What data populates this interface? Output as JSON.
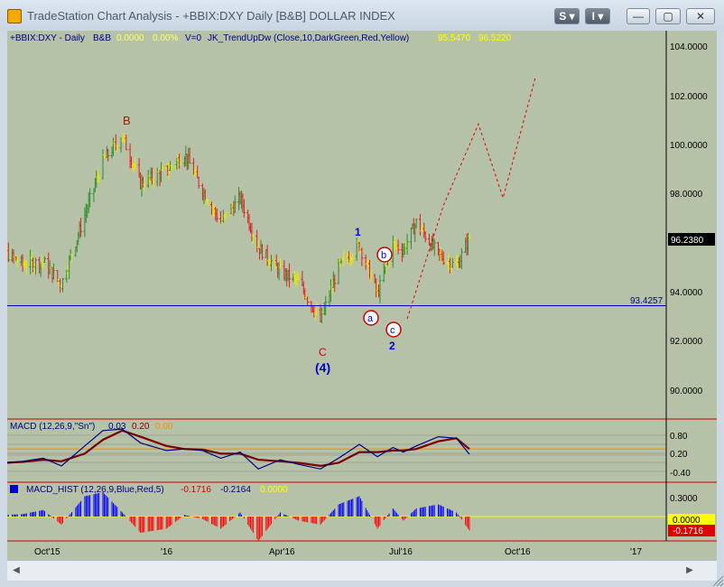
{
  "window": {
    "title": "TradeStation Chart Analysis - +BBIX:DXY Daily [B&B] DOLLAR INDEX",
    "menu_s": "S",
    "menu_i": "I",
    "minimize_glyph": "—",
    "maximize_glyph": "▢",
    "close_glyph": "✕"
  },
  "colors": {
    "plot_bg": "#b6c2a8",
    "frame": "#000000",
    "up_bar": "#2e8b2e",
    "down_bar": "#dd1f1f",
    "neutral_bar": "#e8e800",
    "wave_red": "#cc0000",
    "wave_blue": "#0000cc",
    "macd_line": "#000080",
    "macd_signal": "#7a0000",
    "macd_zero": "#ff8c00",
    "hist_blue": "#0000ff",
    "hist_red": "#ff0000",
    "support_line": "#0000cc",
    "projection": "#dd0000",
    "yellow_text": "#ffff00"
  },
  "header": {
    "symbol": "+BBIX:DXY - Daily",
    "tag": "B&B",
    "change": "0.0000",
    "change_pct": "0.00%",
    "volume": "V=0",
    "indicator": "JK_TrendUpDw (Close,10,DarkGreen,Red,Yellow)",
    "ind_val1": "95.5470",
    "ind_val2": "96.5220"
  },
  "wave_labels": {
    "B": "B",
    "C": "C",
    "four": "(4)",
    "one": "1",
    "two": "2",
    "a": "a",
    "b": "b",
    "c": "c"
  },
  "price_panel": {
    "y_ticks": [
      "104.0000",
      "102.0000",
      "100.0000",
      "98.0000",
      "94.0000",
      "92.0000",
      "90.0000"
    ],
    "last_price": "96.2380",
    "support_label": "93.4257"
  },
  "macd_panel": {
    "title": "MACD (12,26,9,\"Sn\")",
    "v1": "0.03",
    "v2": "0.20",
    "v3": "0.00",
    "ticks": [
      "0.80",
      "0.20",
      "-0.40"
    ]
  },
  "hist_panel": {
    "title": "MACD_HIST (12,26,9,Blue,Red,5)",
    "v1": "-0.1716",
    "v2": "-0.2164",
    "v3": "0.0000",
    "tick": "0.3000",
    "zero_badge": "0.0000",
    "hist_badge": "-0.1716"
  },
  "x_axis": [
    "Oct'15",
    "'16",
    "Apr'16",
    "Jul'16",
    "Oct'16",
    "'17"
  ],
  "chart_data": [
    {
      "type": "line",
      "title": "+BBIX:DXY - Daily",
      "ylim": [
        88.0,
        105.0
      ],
      "x": [
        "2015-08-17",
        "2015-09-01",
        "2015-09-15",
        "2015-10-01",
        "2015-10-15",
        "2015-11-02",
        "2015-11-16",
        "2015-12-01",
        "2015-12-15",
        "2016-01-04",
        "2016-01-18",
        "2016-02-01",
        "2016-02-15",
        "2016-03-01",
        "2016-03-15",
        "2016-04-01",
        "2016-04-15",
        "2016-05-02",
        "2016-05-16",
        "2016-06-01",
        "2016-06-15",
        "2016-06-27",
        "2016-07-05",
        "2016-07-15",
        "2016-08-01",
        "2016-08-15",
        "2016-08-25"
      ],
      "series": [
        {
          "values": [
            96.4,
            95.6,
            95.1,
            95.2,
            94.3,
            97.1,
            99.3,
            100.3,
            98.4,
            98.9,
            99.6,
            98.1,
            96.8,
            97.8,
            95.8,
            94.8,
            94.4,
            92.8,
            95.0,
            95.9,
            93.9,
            95.9,
            95.7,
            96.8,
            95.5,
            95.0,
            96.2
          ]
        }
      ],
      "projection": {
        "x": [
          "2016-08-05",
          "2016-09-01",
          "2016-09-20",
          "2016-10-15"
        ],
        "y": [
          97.5,
          100.8,
          97.8,
          102.7
        ]
      },
      "horizontal_line": 93.4257
    },
    {
      "type": "line",
      "title": "MACD (12,26,9,\"Sn\")",
      "ylim": [
        -0.8,
        1.1
      ],
      "x": [
        "2015-08-17",
        "2015-09-01",
        "2015-09-15",
        "2015-10-01",
        "2015-10-15",
        "2015-11-02",
        "2015-11-16",
        "2015-12-01",
        "2015-12-15",
        "2016-01-04",
        "2016-01-18",
        "2016-02-01",
        "2016-02-15",
        "2016-03-01",
        "2016-03-15",
        "2016-04-01",
        "2016-04-15",
        "2016-05-02",
        "2016-05-16",
        "2016-06-01",
        "2016-06-15",
        "2016-06-27",
        "2016-07-05",
        "2016-07-15",
        "2016-08-01",
        "2016-08-15",
        "2016-08-25"
      ],
      "series": [
        {
          "values": [
            -0.3,
            -0.25,
            -0.2,
            -0.1,
            -0.35,
            0.3,
            0.8,
            0.85,
            0.4,
            0.15,
            0.2,
            0.15,
            -0.1,
            0.1,
            -0.45,
            -0.15,
            -0.3,
            -0.45,
            -0.1,
            0.35,
            -0.05,
            0.25,
            0.1,
            0.3,
            0.6,
            0.55,
            0.03
          ]
        },
        {
          "values": [
            -0.25,
            -0.25,
            -0.22,
            -0.15,
            -0.2,
            0.05,
            0.5,
            0.8,
            0.6,
            0.3,
            0.2,
            0.18,
            0.05,
            0.05,
            -0.15,
            -0.2,
            -0.25,
            -0.35,
            -0.25,
            0.1,
            0.1,
            0.15,
            0.15,
            0.2,
            0.45,
            0.55,
            0.2
          ]
        }
      ]
    },
    {
      "type": "bar",
      "title": "MACD_HIST (12,26,9,Blue,Red,5)",
      "ylim": [
        -0.35,
        0.4
      ],
      "x": [
        "2015-08-17",
        "2015-09-01",
        "2015-09-15",
        "2015-10-01",
        "2015-10-15",
        "2015-11-02",
        "2015-11-16",
        "2015-12-01",
        "2015-12-15",
        "2016-01-04",
        "2016-01-18",
        "2016-02-01",
        "2016-02-15",
        "2016-03-01",
        "2016-03-15",
        "2016-04-01",
        "2016-04-15",
        "2016-05-02",
        "2016-05-16",
        "2016-06-01",
        "2016-06-15",
        "2016-06-27",
        "2016-07-05",
        "2016-07-15",
        "2016-08-01",
        "2016-08-15",
        "2016-08-25"
      ],
      "values": [
        0.05,
        0.02,
        0.03,
        0.08,
        -0.1,
        0.25,
        0.3,
        0.05,
        -0.2,
        -0.15,
        0.02,
        -0.03,
        -0.15,
        0.05,
        -0.3,
        0.05,
        -0.05,
        -0.1,
        0.15,
        0.25,
        -0.15,
        0.1,
        -0.05,
        0.1,
        0.15,
        0.05,
        -0.17
      ]
    }
  ]
}
